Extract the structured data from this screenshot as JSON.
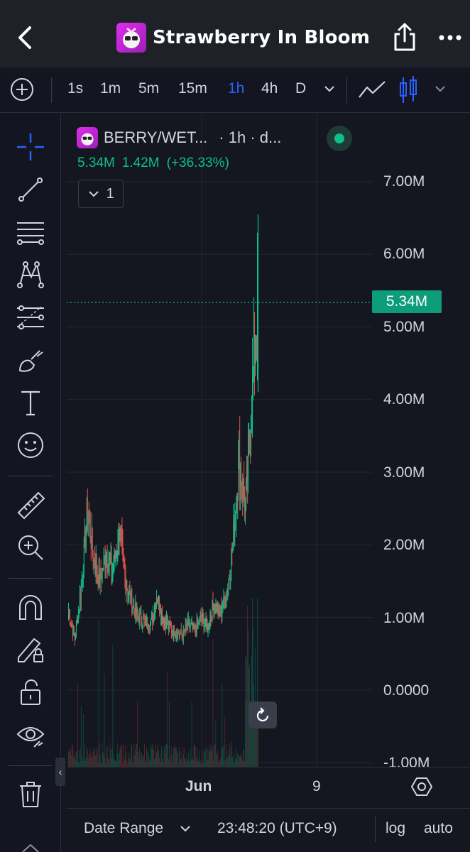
{
  "header": {
    "title": "Strawberry In Bloom",
    "icons": [
      "back-chevron-icon",
      "token-logo",
      "share-icon",
      "more-dots-icon"
    ]
  },
  "toolbar": {
    "timeframes": [
      {
        "label": "1s",
        "active": false
      },
      {
        "label": "1m",
        "active": false
      },
      {
        "label": "5m",
        "active": false
      },
      {
        "label": "15m",
        "active": false
      },
      {
        "label": "1h",
        "active": true
      },
      {
        "label": "4h",
        "active": false
      },
      {
        "label": "D",
        "active": false
      }
    ],
    "accent_color": "#2962ff"
  },
  "tools": [
    "crosshair-icon",
    "trend-line-icon",
    "horizontal-lines-icon",
    "pattern-icon",
    "fib-icon",
    "brush-icon",
    "text-icon",
    "emoji-icon",
    "ruler-icon",
    "zoom-in-icon",
    "magnet-icon",
    "lock-drawing-icon",
    "unlock-icon",
    "eye-icon",
    "trash-icon"
  ],
  "legend": {
    "symbol": "BERRY/WET...",
    "interval": "· 1h · d...",
    "values": [
      "5.34M",
      "1.42M",
      "(+36.33%)"
    ],
    "collapse_count": "1",
    "value_color": "#0dbf8c"
  },
  "price_axis": {
    "labels": [
      "7.00M",
      "6.00M",
      "5.00M",
      "4.00M",
      "3.00M",
      "2.00M",
      "1.00M",
      "0.0000",
      "-1.00M"
    ],
    "last_price": "5.34M",
    "last_price_color": "#0d9d7a"
  },
  "time_axis": {
    "labels": [
      "Jun",
      "9"
    ]
  },
  "bottom_bar": {
    "date_range": "Date Range",
    "clock": "23:48:20 (UTC+9)",
    "log": "log",
    "auto": "auto"
  },
  "chart_data": {
    "type": "candlestick",
    "ylim": [
      -1000000,
      7000000
    ],
    "last_value": 5340000,
    "up_color": "#0dbf8c",
    "down_color": "#e2524c",
    "close_path": [
      1100000,
      700000,
      1400000,
      2500000,
      1800000,
      1500000,
      1900000,
      1600000,
      2200000,
      1500000,
      1200000,
      1000000,
      950000,
      900000,
      1300000,
      1000000,
      850000,
      800000,
      750000,
      900000,
      800000,
      1000000,
      850000,
      1200000,
      1050000,
      1300000,
      2000000,
      3200000,
      2500000,
      4000000,
      5340000
    ]
  }
}
